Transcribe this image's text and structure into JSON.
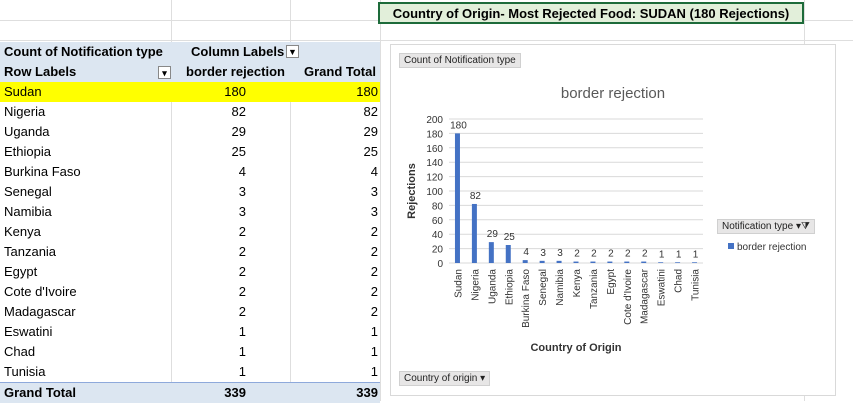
{
  "title_cell": "Country of Origin- Most Rejected Food: SUDAN (180 Rejections)",
  "pivot": {
    "header1": {
      "c1": "Count of Notification type",
      "c2": "Column Labels"
    },
    "header2": {
      "c1": "Row Labels",
      "c2": "border rejection",
      "c3": "Grand Total"
    },
    "rows": [
      {
        "label": "Sudan",
        "value": "180",
        "total": "180"
      },
      {
        "label": "Nigeria",
        "value": "82",
        "total": "82"
      },
      {
        "label": "Uganda",
        "value": "29",
        "total": "29"
      },
      {
        "label": "Ethiopia",
        "value": "25",
        "total": "25"
      },
      {
        "label": "Burkina Faso",
        "value": "4",
        "total": "4"
      },
      {
        "label": "Senegal",
        "value": "3",
        "total": "3"
      },
      {
        "label": "Namibia",
        "value": "3",
        "total": "3"
      },
      {
        "label": "Kenya",
        "value": "2",
        "total": "2"
      },
      {
        "label": "Tanzania",
        "value": "2",
        "total": "2"
      },
      {
        "label": "Egypt",
        "value": "2",
        "total": "2"
      },
      {
        "label": "Cote d'Ivoire",
        "value": "2",
        "total": "2"
      },
      {
        "label": "Madagascar",
        "value": "2",
        "total": "2"
      },
      {
        "label": "Eswatini",
        "value": "1",
        "total": "1"
      },
      {
        "label": "Chad",
        "value": "1",
        "total": "1"
      },
      {
        "label": "Tunisia",
        "value": "1",
        "total": "1"
      }
    ],
    "grand_total": {
      "label": "Grand Total",
      "value": "339",
      "total": "339"
    }
  },
  "chart_tags": {
    "value_field": "Count of Notification type",
    "axis_field": "Country of origin",
    "legend_field": "Notification type"
  },
  "colors": {
    "bar": "#4472c4",
    "highlight": "#ffff00",
    "header": "#dce6f1",
    "title_bg": "#e2efda",
    "title_border": "#1d6b3a"
  },
  "chart_data": {
    "type": "bar",
    "title": "border rejection",
    "xlabel": "Country of Origin",
    "ylabel": "Rejections",
    "categories": [
      "Sudan",
      "Nigeria",
      "Uganda",
      "Ethiopia",
      "Burkina Faso",
      "Senegal",
      "Namibia",
      "Kenya",
      "Tanzania",
      "Egypt",
      "Cote d'Ivoire",
      "Madagascar",
      "Eswatini",
      "Chad",
      "Tunisia"
    ],
    "series": [
      {
        "name": "border rejection",
        "values": [
          180,
          82,
          29,
          25,
          4,
          3,
          3,
          2,
          2,
          2,
          2,
          2,
          1,
          1,
          1
        ]
      }
    ],
    "ylim": [
      0,
      200
    ],
    "yticks": [
      0,
      20,
      40,
      60,
      80,
      100,
      120,
      140,
      160,
      180,
      200
    ],
    "grid": true,
    "legend": "right"
  }
}
